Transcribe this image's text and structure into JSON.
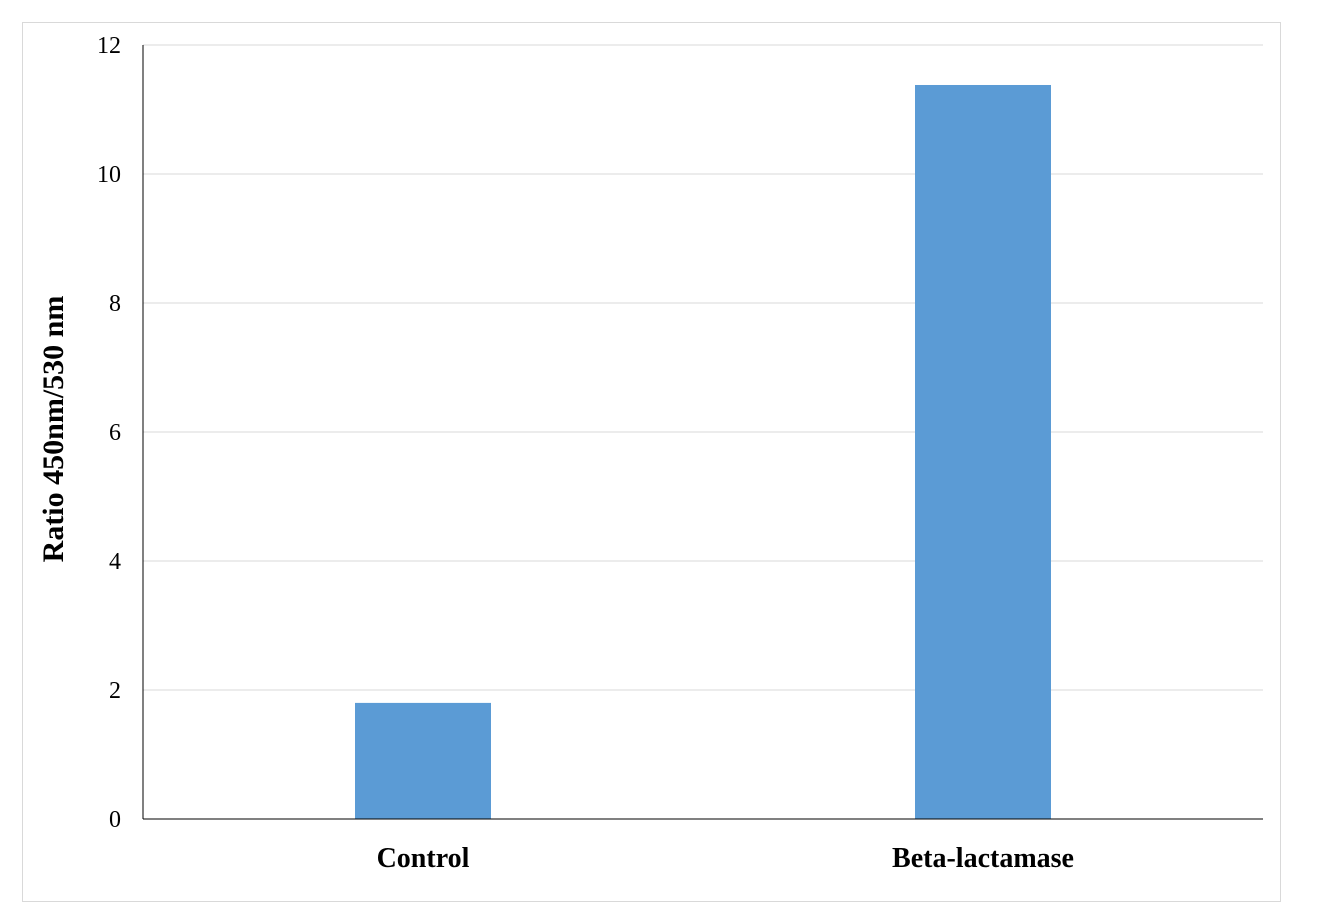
{
  "chart_data": {
    "type": "bar",
    "title": "",
    "xlabel": "",
    "ylabel": "Ratio 450nm/530 nm",
    "categories": [
      "Control",
      "Beta-lactamase"
    ],
    "values": [
      1.8,
      11.38
    ],
    "ylim": [
      0,
      12
    ],
    "yticks": [
      0,
      2,
      4,
      6,
      8,
      10,
      12
    ],
    "grid": true,
    "legend": false,
    "bar_color": "#5b9bd5",
    "grid_color": "#d9d9d9",
    "axis_color": "#000000"
  }
}
